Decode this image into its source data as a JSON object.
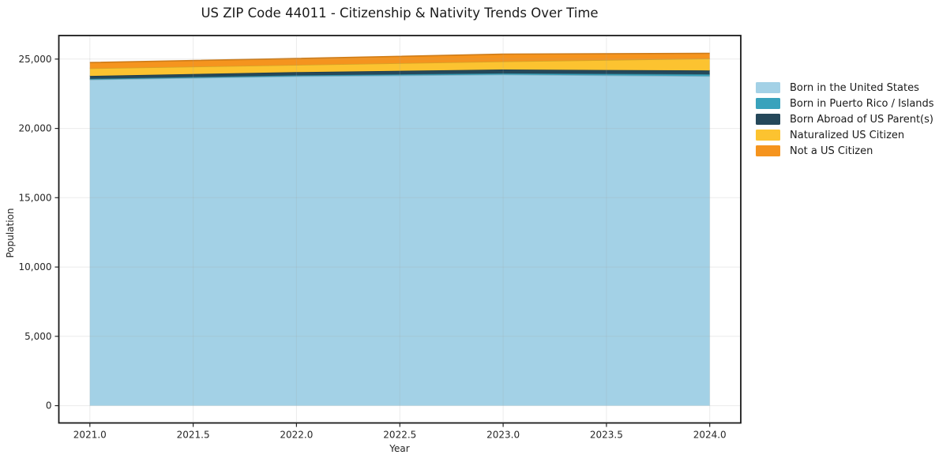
{
  "figure": {
    "background": "#ffffff"
  },
  "chart_data": {
    "type": "area",
    "stacked": true,
    "title": "US ZIP Code 44011 - Citizenship & Nativity Trends Over Time",
    "xlabel": "Year",
    "ylabel": "Population",
    "x": [
      2021,
      2022,
      2023,
      2024
    ],
    "series": [
      {
        "name": "Born in the United States",
        "color": "#a3d1e6",
        "values": [
          23520,
          23760,
          23880,
          23770
        ]
      },
      {
        "name": "Born in Puerto Rico / Islands",
        "color": "#39a2bc",
        "values": [
          60,
          70,
          90,
          130
        ]
      },
      {
        "name": "Born Abroad of US Parent(s)",
        "color": "#25485a",
        "values": [
          210,
          230,
          280,
          280
        ]
      },
      {
        "name": "Naturalized US Citizen",
        "color": "#fcc330",
        "values": [
          540,
          520,
          580,
          860
        ]
      },
      {
        "name": "Not a US Citizen",
        "color": "#f5941e",
        "values": [
          420,
          460,
          530,
          380
        ]
      }
    ],
    "totals": [
      24750,
      25040,
      25360,
      25420
    ],
    "xlim": [
      2020.85,
      2024.15
    ],
    "ylim": [
      -1250,
      26700
    ],
    "xticks": {
      "values": [
        2021.0,
        2021.5,
        2022.0,
        2022.5,
        2023.0,
        2023.5,
        2024.0
      ],
      "labels": [
        "2021.0",
        "2021.5",
        "2022.0",
        "2022.5",
        "2023.0",
        "2023.5",
        "2024.0"
      ]
    },
    "yticks": {
      "values": [
        0,
        5000,
        10000,
        15000,
        20000,
        25000
      ],
      "labels": [
        "0",
        "5,000",
        "10,000",
        "15,000",
        "20,000",
        "25,000"
      ]
    },
    "grid": true,
    "legend_position": "right-outside"
  },
  "style_colors": {
    "spine": "#1a1a1a",
    "tick": "#262626",
    "grid_overlay": "rgba(165,165,165,0.22)"
  }
}
